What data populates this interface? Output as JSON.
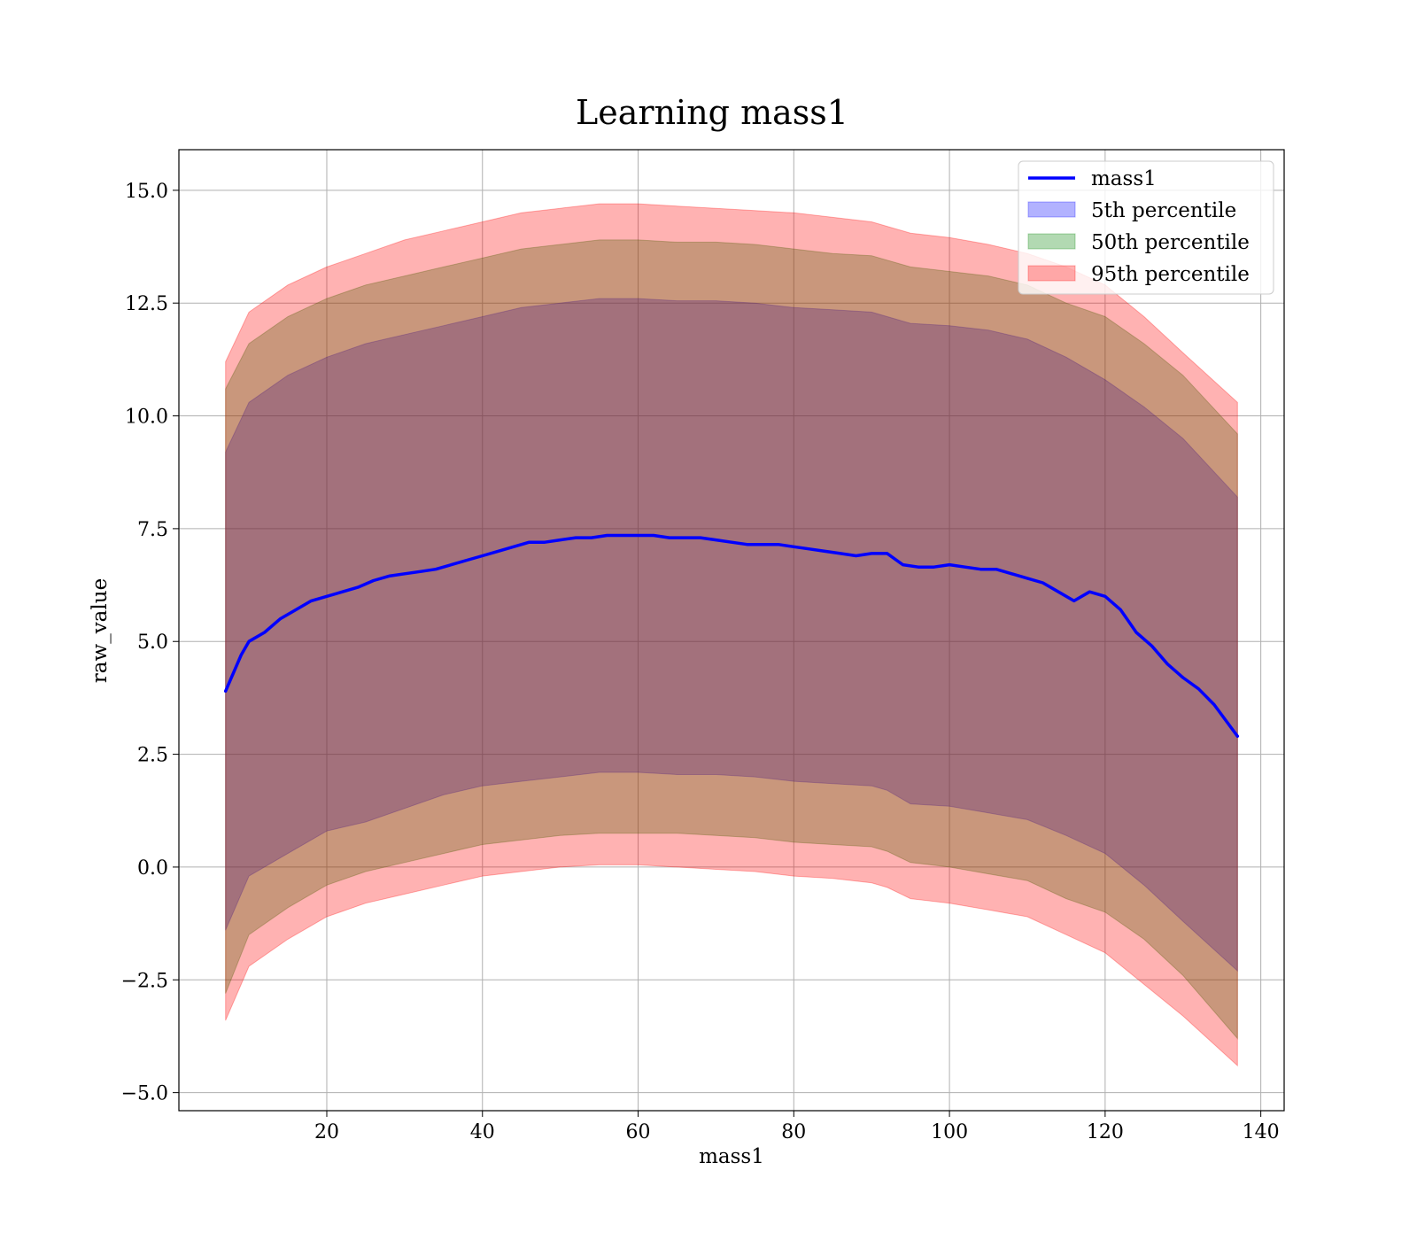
{
  "chart_data": {
    "type": "area",
    "title": "Learning mass1",
    "xlabel": "mass1",
    "ylabel": "raw_value",
    "xlim": [
      1,
      143
    ],
    "ylim": [
      -5.4,
      15.9
    ],
    "xticks": [
      20,
      40,
      60,
      80,
      100,
      120,
      140
    ],
    "xtick_labels": [
      "20",
      "40",
      "60",
      "80",
      "100",
      "120",
      "140"
    ],
    "yticks": [
      -5.0,
      -2.5,
      0.0,
      2.5,
      5.0,
      7.5,
      10.0,
      12.5,
      15.0
    ],
    "ytick_labels": [
      "−5.0",
      "−2.5",
      "0.0",
      "2.5",
      "5.0",
      "7.5",
      "10.0",
      "12.5",
      "15.0"
    ],
    "grid": true,
    "legend_position": "top-right",
    "line": {
      "name": "mass1",
      "color": "#0000ff",
      "x": [
        7,
        8,
        9,
        10,
        12,
        14,
        16,
        18,
        20,
        22,
        24,
        26,
        28,
        30,
        32,
        34,
        36,
        38,
        40,
        42,
        44,
        46,
        48,
        50,
        52,
        54,
        56,
        58,
        60,
        62,
        64,
        66,
        68,
        70,
        72,
        74,
        76,
        78,
        80,
        82,
        84,
        86,
        88,
        90,
        92,
        94,
        96,
        98,
        100,
        102,
        104,
        106,
        108,
        110,
        112,
        114,
        116,
        118,
        120,
        122,
        124,
        126,
        128,
        130,
        132,
        134,
        137
      ],
      "y": [
        3.9,
        4.3,
        4.7,
        5.0,
        5.2,
        5.5,
        5.7,
        5.9,
        6.0,
        6.1,
        6.2,
        6.35,
        6.45,
        6.5,
        6.55,
        6.6,
        6.7,
        6.8,
        6.9,
        7.0,
        7.1,
        7.2,
        7.2,
        7.25,
        7.3,
        7.3,
        7.35,
        7.35,
        7.35,
        7.35,
        7.3,
        7.3,
        7.3,
        7.25,
        7.2,
        7.15,
        7.15,
        7.15,
        7.1,
        7.05,
        7.0,
        6.95,
        6.9,
        6.95,
        6.95,
        6.7,
        6.65,
        6.65,
        6.7,
        6.65,
        6.6,
        6.6,
        6.5,
        6.4,
        6.3,
        6.1,
        5.9,
        6.1,
        6.0,
        5.7,
        5.2,
        4.9,
        4.5,
        4.2,
        3.95,
        3.6,
        2.9
      ]
    },
    "bands": [
      {
        "name": "5th percentile",
        "color": "#0000ff",
        "x": [
          7,
          10,
          15,
          20,
          25,
          30,
          35,
          40,
          45,
          50,
          55,
          60,
          65,
          70,
          75,
          80,
          85,
          90,
          92,
          95,
          100,
          105,
          110,
          115,
          120,
          125,
          130,
          137
        ],
        "upper": [
          9.2,
          10.3,
          10.9,
          11.3,
          11.6,
          11.8,
          12.0,
          12.2,
          12.4,
          12.5,
          12.6,
          12.6,
          12.55,
          12.55,
          12.5,
          12.4,
          12.35,
          12.3,
          12.2,
          12.05,
          12.0,
          11.9,
          11.7,
          11.3,
          10.8,
          10.2,
          9.5,
          8.2
        ],
        "lower": [
          -1.4,
          -0.2,
          0.3,
          0.8,
          1.0,
          1.3,
          1.6,
          1.8,
          1.9,
          2.0,
          2.1,
          2.1,
          2.05,
          2.05,
          2.0,
          1.9,
          1.85,
          1.8,
          1.7,
          1.4,
          1.35,
          1.2,
          1.05,
          0.7,
          0.3,
          -0.4,
          -1.2,
          -2.3
        ]
      },
      {
        "name": "50th percentile",
        "color": "#008000",
        "x": [
          7,
          10,
          15,
          20,
          25,
          30,
          35,
          40,
          45,
          50,
          55,
          60,
          65,
          70,
          75,
          80,
          85,
          90,
          92,
          95,
          100,
          105,
          110,
          115,
          120,
          125,
          130,
          137
        ],
        "upper": [
          10.6,
          11.6,
          12.2,
          12.6,
          12.9,
          13.1,
          13.3,
          13.5,
          13.7,
          13.8,
          13.9,
          13.9,
          13.85,
          13.85,
          13.8,
          13.7,
          13.6,
          13.55,
          13.45,
          13.3,
          13.2,
          13.1,
          12.9,
          12.5,
          12.2,
          11.6,
          10.9,
          9.6
        ],
        "lower": [
          -2.8,
          -1.5,
          -0.9,
          -0.4,
          -0.1,
          0.1,
          0.3,
          0.5,
          0.6,
          0.7,
          0.75,
          0.75,
          0.75,
          0.7,
          0.65,
          0.55,
          0.5,
          0.45,
          0.35,
          0.1,
          0.0,
          -0.15,
          -0.3,
          -0.7,
          -1.0,
          -1.6,
          -2.4,
          -3.8
        ]
      },
      {
        "name": "95th percentile",
        "color": "#ff0000",
        "x": [
          7,
          10,
          15,
          20,
          25,
          30,
          35,
          40,
          45,
          50,
          55,
          60,
          65,
          70,
          75,
          80,
          85,
          90,
          92,
          95,
          100,
          105,
          110,
          115,
          120,
          125,
          130,
          137
        ],
        "upper": [
          11.2,
          12.3,
          12.9,
          13.3,
          13.6,
          13.9,
          14.1,
          14.3,
          14.5,
          14.6,
          14.7,
          14.7,
          14.65,
          14.6,
          14.55,
          14.5,
          14.4,
          14.3,
          14.2,
          14.05,
          13.95,
          13.8,
          13.6,
          13.3,
          12.9,
          12.2,
          11.4,
          10.3
        ],
        "lower": [
          -3.4,
          -2.2,
          -1.6,
          -1.1,
          -0.8,
          -0.6,
          -0.4,
          -0.2,
          -0.1,
          0.0,
          0.05,
          0.05,
          0.0,
          -0.05,
          -0.1,
          -0.2,
          -0.25,
          -0.35,
          -0.45,
          -0.7,
          -0.8,
          -0.95,
          -1.1,
          -1.5,
          -1.9,
          -2.6,
          -3.3,
          -4.4
        ]
      }
    ]
  }
}
